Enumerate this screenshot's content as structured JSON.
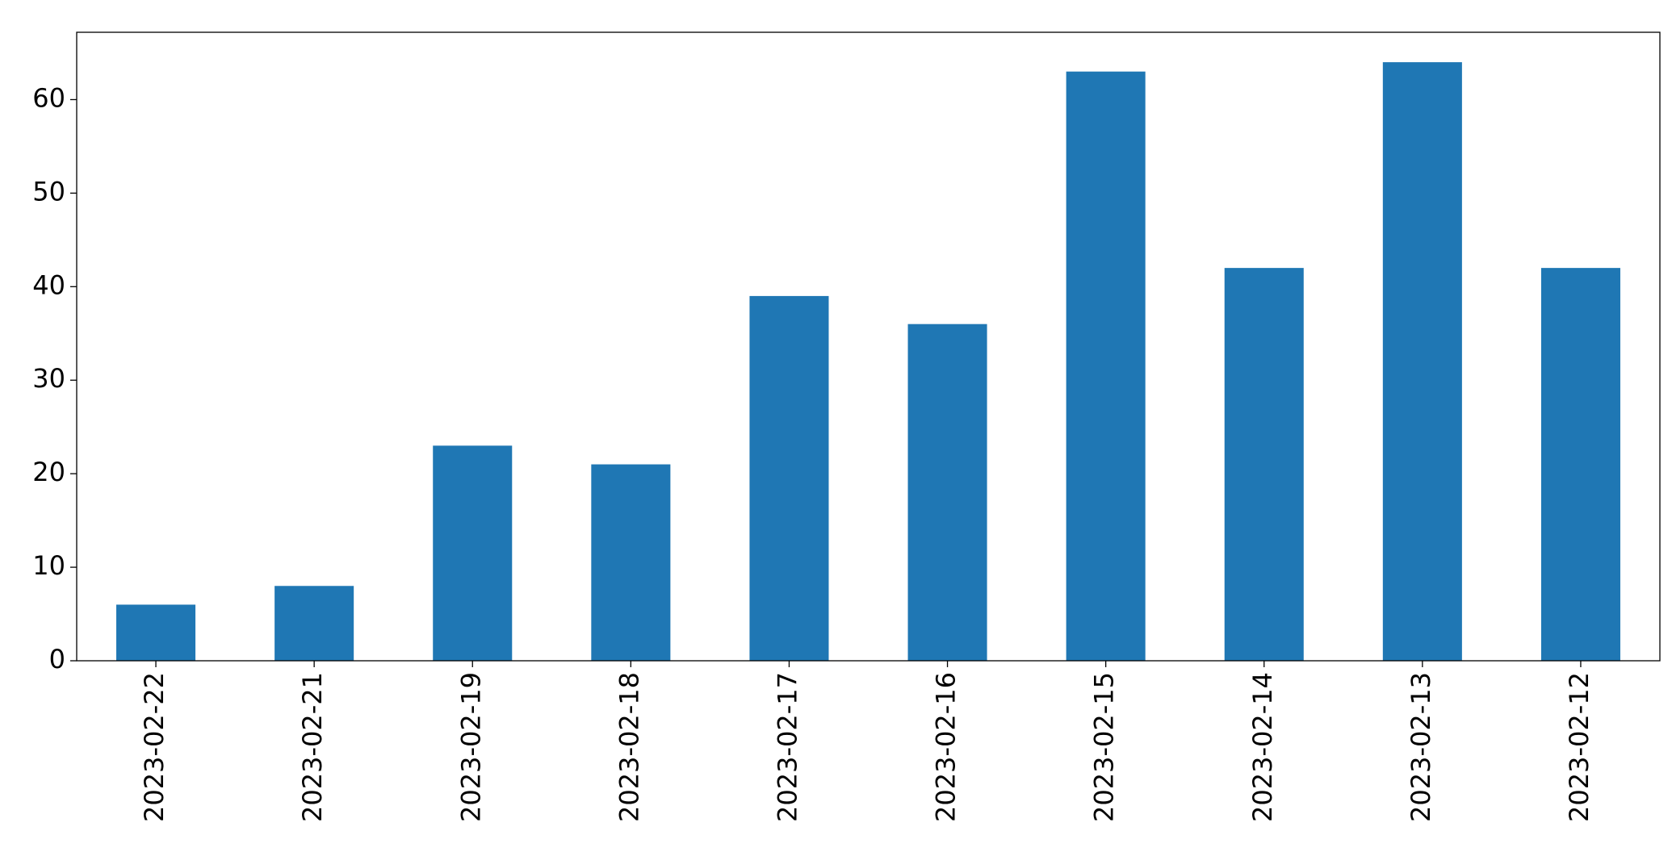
{
  "chart_data": {
    "type": "bar",
    "categories": [
      "2023-02-22",
      "2023-02-21",
      "2023-02-19",
      "2023-02-18",
      "2023-02-17",
      "2023-02-16",
      "2023-02-15",
      "2023-02-14",
      "2023-02-13",
      "2023-02-12"
    ],
    "values": [
      6,
      8,
      23,
      21,
      39,
      36,
      63,
      42,
      64,
      42
    ],
    "color": "#1f77b4",
    "ylim": [
      0,
      67.2
    ],
    "yticks": [
      0,
      10,
      20,
      30,
      40,
      50,
      60
    ],
    "grid": false
  }
}
